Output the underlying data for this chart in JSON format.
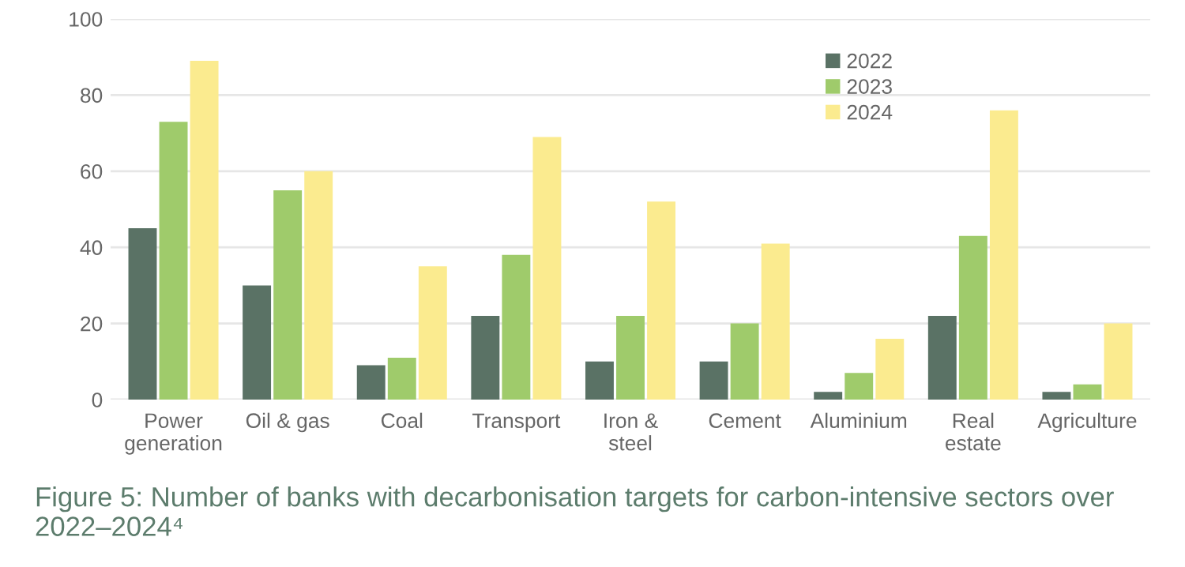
{
  "chart_data": {
    "type": "bar",
    "title": "Figure 5: Number of banks with decarbonisation targets for carbon-intensive sectors over 2022–2024⁴",
    "categories": [
      "Power\ngeneration",
      "Oil & gas",
      "Coal",
      "Transport",
      "Iron &\nsteel",
      "Cement",
      "Aluminium",
      "Real\nestate",
      "Agriculture"
    ],
    "series": [
      {
        "name": "2022",
        "color": "#5a7265",
        "values": [
          45,
          30,
          9,
          22,
          10,
          10,
          2,
          22,
          2
        ]
      },
      {
        "name": "2023",
        "color": "#9fcb6b",
        "values": [
          73,
          55,
          11,
          38,
          22,
          20,
          7,
          43,
          4
        ]
      },
      {
        "name": "2024",
        "color": "#fbeb8f",
        "values": [
          89,
          60,
          35,
          69,
          52,
          41,
          16,
          76,
          20
        ]
      }
    ],
    "ylim": [
      0,
      100
    ],
    "yticks": [
      0,
      20,
      40,
      60,
      80,
      100
    ],
    "grid": "y",
    "legend": "top"
  }
}
